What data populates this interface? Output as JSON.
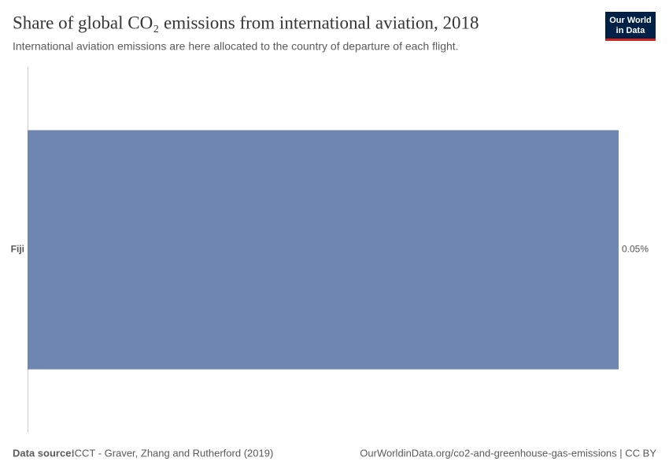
{
  "chart_data": {
    "type": "bar",
    "orientation": "horizontal",
    "title": "Share of global CO₂ emissions from international aviation, 2018",
    "subtitle": "International aviation emissions are here allocated to the country of departure of each flight.",
    "categories": [
      "Fiji"
    ],
    "values": [
      0.05
    ],
    "value_labels": [
      "0.05%"
    ],
    "color": "#6f87b0"
  },
  "footer": {
    "source_label": "Data source:",
    "source": "ICCT - Graver, Zhang and Rutherford (2019)",
    "url": "OurWorldinData.org/co2-and-greenhouse-gas-emissions | CC BY"
  },
  "logo": [
    "Our World",
    "in Data"
  ]
}
